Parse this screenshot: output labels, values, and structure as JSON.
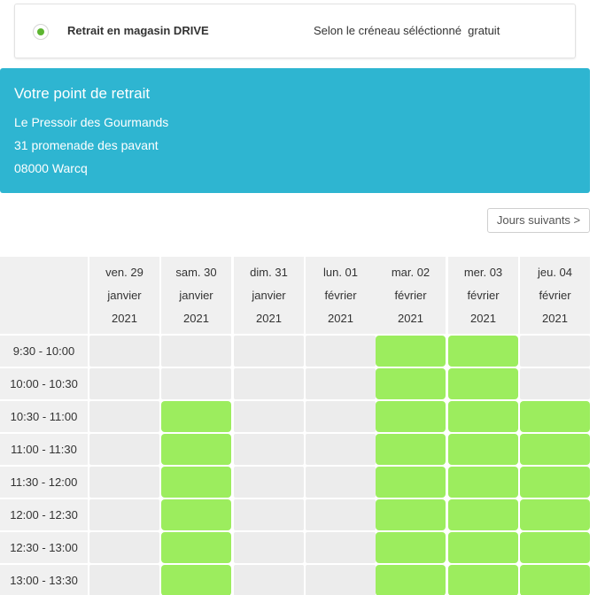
{
  "delivery_option": {
    "name": "Retrait en magasin DRIVE",
    "detail": "Selon le créneau séléctionné  gratuit",
    "selected": true,
    "accent_color": "#5db531"
  },
  "pickup_point": {
    "title": "Votre point de retrait",
    "name": "Le Pressoir des Gourmands",
    "address": "31 promenade des pavant",
    "city": "08000 Warcq",
    "background_color": "#2eb5d1"
  },
  "next_days_button": "Jours suivants >",
  "schedule": {
    "days": [
      {
        "day": "ven. 29",
        "month": "janvier",
        "year": "2021"
      },
      {
        "day": "sam. 30",
        "month": "janvier",
        "year": "2021"
      },
      {
        "day": "dim. 31",
        "month": "janvier",
        "year": "2021"
      },
      {
        "day": "lun. 01",
        "month": "février",
        "year": "2021"
      },
      {
        "day": "mar. 02",
        "month": "février",
        "year": "2021"
      },
      {
        "day": "mer. 03",
        "month": "février",
        "year": "2021"
      },
      {
        "day": "jeu. 04",
        "month": "février",
        "year": "2021"
      }
    ],
    "slots": [
      {
        "time": "9:30 - 10:00",
        "available": [
          false,
          false,
          false,
          false,
          true,
          true,
          false
        ]
      },
      {
        "time": "10:00 - 10:30",
        "available": [
          false,
          false,
          false,
          false,
          true,
          true,
          false
        ]
      },
      {
        "time": "10:30 - 11:00",
        "available": [
          false,
          true,
          false,
          false,
          true,
          true,
          true
        ]
      },
      {
        "time": "11:00 - 11:30",
        "available": [
          false,
          true,
          false,
          false,
          true,
          true,
          true
        ]
      },
      {
        "time": "11:30 - 12:00",
        "available": [
          false,
          true,
          false,
          false,
          true,
          true,
          true
        ]
      },
      {
        "time": "12:00 - 12:30",
        "available": [
          false,
          true,
          false,
          false,
          true,
          true,
          true
        ]
      },
      {
        "time": "12:30 - 13:00",
        "available": [
          false,
          true,
          false,
          false,
          true,
          true,
          true
        ]
      },
      {
        "time": "13:00 - 13:30",
        "available": [
          false,
          true,
          false,
          false,
          true,
          true,
          true
        ]
      }
    ],
    "available_color": "#9ced5e",
    "unavailable_color": "#ececec"
  }
}
